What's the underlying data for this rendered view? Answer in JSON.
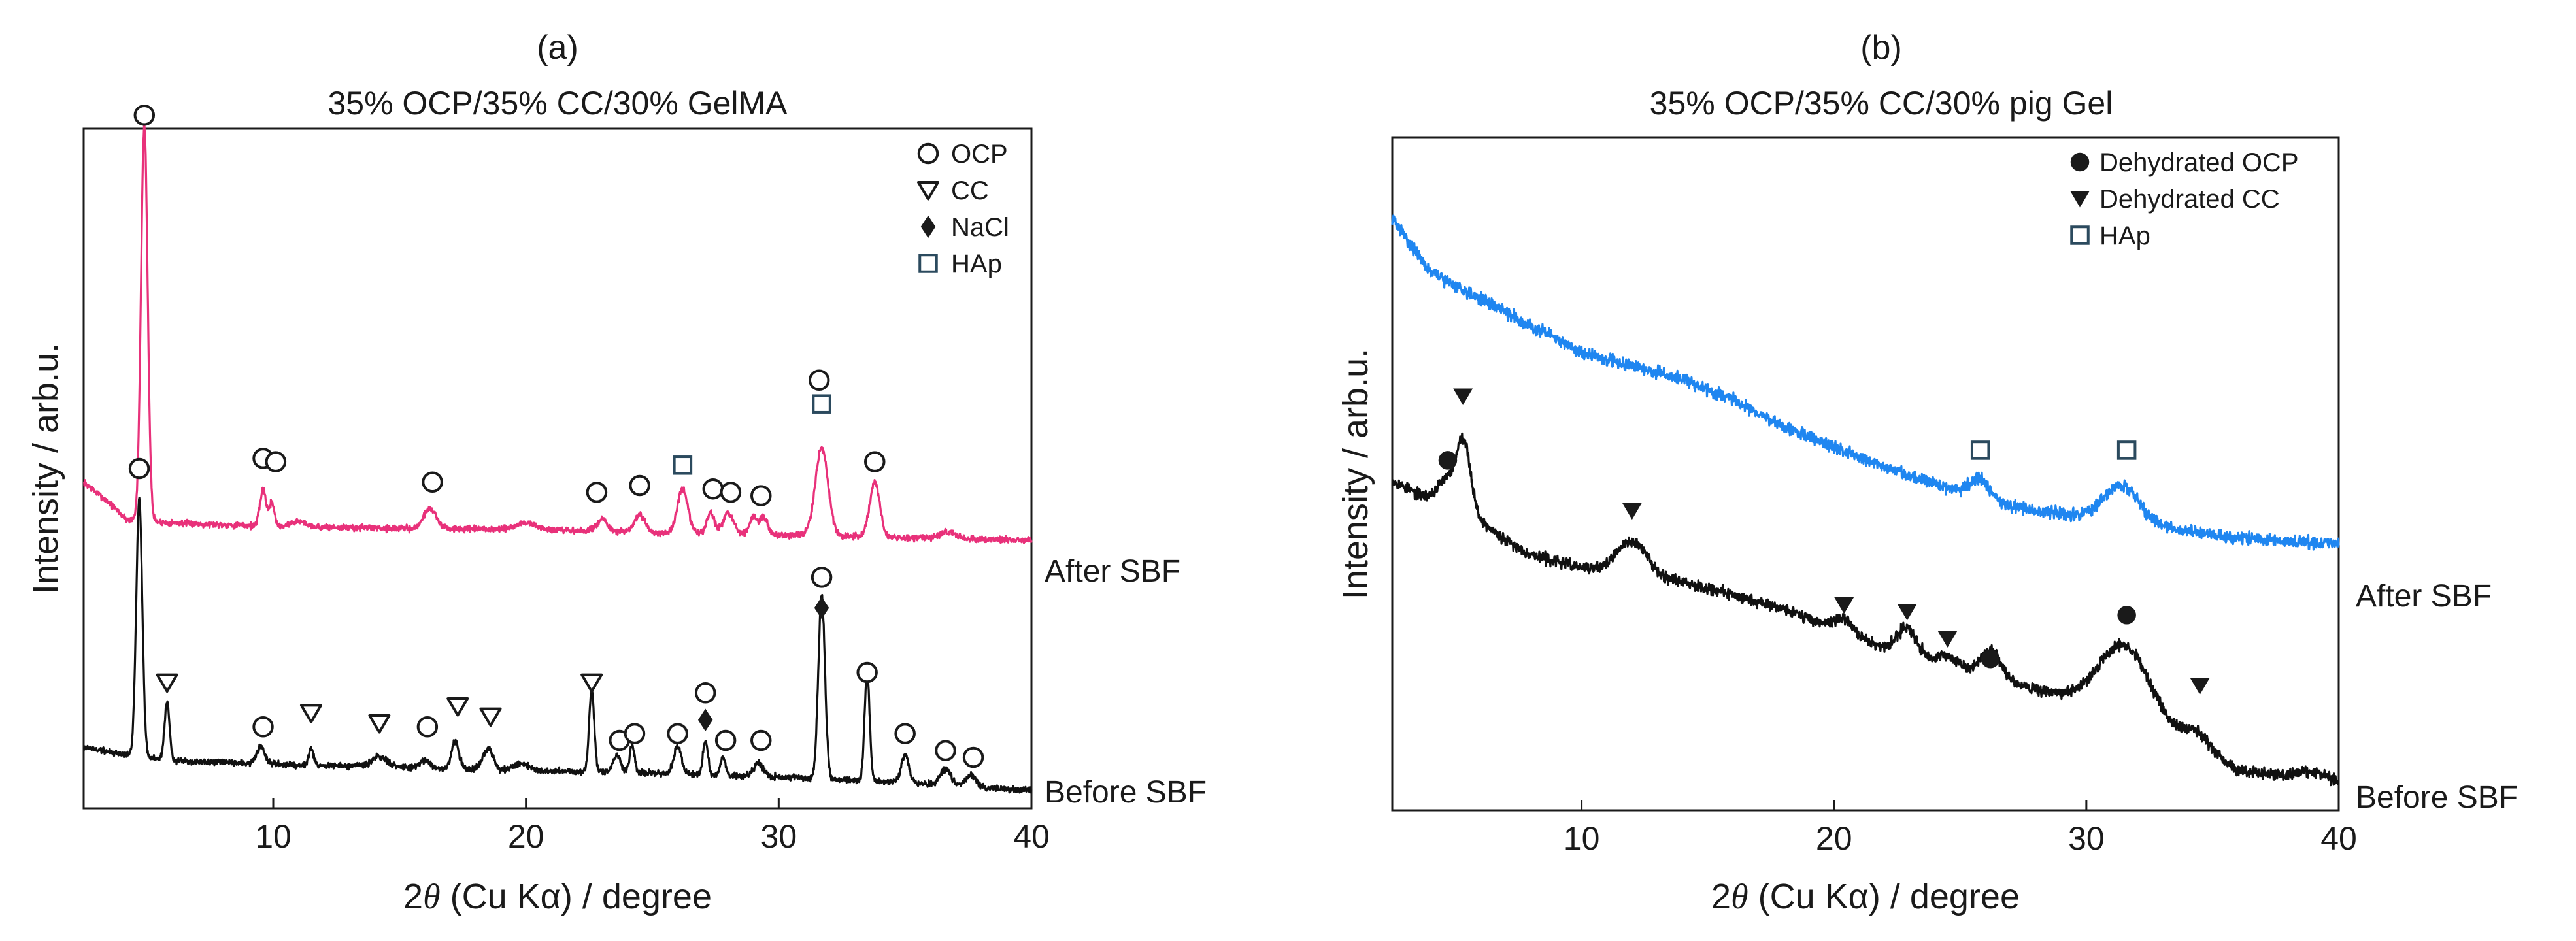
{
  "chart_data": [
    {
      "type": "line",
      "panel_label": "(a)",
      "title": "35% OCP/35% CC/30% GelMA",
      "xlabel_prefix": "2",
      "xlabel_theta": "θ",
      "xlabel_suffix": " (Cu Kα) / degree",
      "ylabel": "Intensity  / arb.u.",
      "xlim": [
        2.5,
        40
      ],
      "ylim": [
        0,
        100
      ],
      "x_ticks": [
        10,
        20,
        30,
        40
      ],
      "legend": {
        "placement": "top-right",
        "entries": [
          {
            "label": "OCP",
            "symbol": "circle-open"
          },
          {
            "label": "CC",
            "symbol": "triangle-down-open"
          },
          {
            "label": "NaCl",
            "symbol": "diamond-filled"
          },
          {
            "label": "HAp",
            "symbol": "square-open"
          }
        ]
      },
      "series": [
        {
          "name": "After SBF",
          "label": "After SBF",
          "color": "#e8317a",
          "baseline": [
            [
              2.5,
              48
            ],
            [
              3.5,
              45
            ],
            [
              4.2,
              42.5
            ],
            [
              6,
              42
            ],
            [
              10,
              41.5
            ],
            [
              15,
              41.2
            ],
            [
              20,
              41
            ],
            [
              25,
              40.6
            ],
            [
              30,
              40.3
            ],
            [
              35,
              39.8
            ],
            [
              40,
              39.5
            ]
          ],
          "peaks": [
            [
              4.9,
              58,
              0.13
            ],
            [
              9.6,
              5.5,
              0.12
            ],
            [
              9.95,
              3.5,
              0.1
            ],
            [
              11,
              0.8,
              0.3
            ],
            [
              16.2,
              3,
              0.25
            ],
            [
              20,
              1,
              0.4
            ],
            [
              23,
              1.8,
              0.2
            ],
            [
              24.5,
              2.5,
              0.2
            ],
            [
              26.2,
              6.5,
              0.2
            ],
            [
              27.3,
              3,
              0.15
            ],
            [
              28,
              3,
              0.2
            ],
            [
              29,
              2.5,
              0.15
            ],
            [
              29.4,
              2.5,
              0.15
            ],
            [
              31.7,
              13,
              0.25
            ],
            [
              33.8,
              8,
              0.2
            ],
            [
              36.7,
              1,
              0.3
            ]
          ],
          "noise": 0.45,
          "seed": 7,
          "markers": [
            {
              "symbol": "circle-open",
              "x": 4.9,
              "y": 102
            },
            {
              "symbol": "circle-open",
              "x": 9.6,
              "y": 51.5
            },
            {
              "symbol": "circle-open",
              "x": 10.1,
              "y": 51
            },
            {
              "symbol": "circle-open",
              "x": 16.3,
              "y": 48
            },
            {
              "symbol": "circle-open",
              "x": 22.8,
              "y": 46.5
            },
            {
              "symbol": "circle-open",
              "x": 24.5,
              "y": 47.5
            },
            {
              "symbol": "square-open",
              "x": 26.2,
              "y": 50.5
            },
            {
              "symbol": "circle-open",
              "x": 27.4,
              "y": 47
            },
            {
              "symbol": "circle-open",
              "x": 28.1,
              "y": 46.5
            },
            {
              "symbol": "circle-open",
              "x": 29.3,
              "y": 46
            },
            {
              "symbol": "circle-open",
              "x": 31.6,
              "y": 63
            },
            {
              "symbol": "square-open",
              "x": 31.7,
              "y": 59.5
            },
            {
              "symbol": "circle-open",
              "x": 33.8,
              "y": 51
            }
          ]
        },
        {
          "name": "Before SBF",
          "label": "Before SBF",
          "color": "#111111",
          "baseline": [
            [
              2.5,
              9
            ],
            [
              4,
              8
            ],
            [
              6,
              7
            ],
            [
              10,
              6.5
            ],
            [
              15,
              6
            ],
            [
              20,
              5.6
            ],
            [
              25,
              5.2
            ],
            [
              30,
              4.6
            ],
            [
              35,
              3.8
            ],
            [
              40,
              2.6
            ]
          ],
          "peaks": [
            [
              4.7,
              38,
              0.12
            ],
            [
              5.8,
              8.5,
              0.1
            ],
            [
              9.5,
              2.5,
              0.15
            ],
            [
              11.5,
              2.5,
              0.1
            ],
            [
              14.2,
              1.5,
              0.3
            ],
            [
              16,
              1.2,
              0.2
            ],
            [
              17.2,
              4,
              0.15
            ],
            [
              18.5,
              3,
              0.2
            ],
            [
              19.8,
              1,
              0.3
            ],
            [
              22.6,
              12,
              0.1
            ],
            [
              23.6,
              2.5,
              0.15
            ],
            [
              24.2,
              4,
              0.1
            ],
            [
              26,
              4,
              0.15
            ],
            [
              27.1,
              5,
              0.1
            ],
            [
              27.8,
              2.5,
              0.1
            ],
            [
              29.2,
              2,
              0.2
            ],
            [
              31.7,
              27,
              0.13
            ],
            [
              33.5,
              16,
              0.1
            ],
            [
              35,
              4,
              0.15
            ],
            [
              36.6,
              2.5,
              0.2
            ],
            [
              37.6,
              1.8,
              0.2
            ]
          ],
          "noise": 0.45,
          "seed": 19,
          "markers": [
            {
              "symbol": "circle-open",
              "x": 4.7,
              "y": 50
            },
            {
              "symbol": "triangle-down-open",
              "x": 5.8,
              "y": 18.5
            },
            {
              "symbol": "circle-open",
              "x": 9.6,
              "y": 12
            },
            {
              "symbol": "triangle-down-open",
              "x": 11.5,
              "y": 14
            },
            {
              "symbol": "triangle-down-open",
              "x": 14.2,
              "y": 12.5
            },
            {
              "symbol": "circle-open",
              "x": 16.1,
              "y": 12
            },
            {
              "symbol": "triangle-down-open",
              "x": 17.3,
              "y": 15
            },
            {
              "symbol": "triangle-down-open",
              "x": 18.6,
              "y": 13.5
            },
            {
              "symbol": "triangle-down-open",
              "x": 22.6,
              "y": 18.5
            },
            {
              "symbol": "circle-open",
              "x": 23.7,
              "y": 10
            },
            {
              "symbol": "circle-open",
              "x": 24.3,
              "y": 11
            },
            {
              "symbol": "circle-open",
              "x": 26.0,
              "y": 11
            },
            {
              "symbol": "circle-open",
              "x": 27.1,
              "y": 17
            },
            {
              "symbol": "diamond-filled",
              "x": 27.1,
              "y": 13
            },
            {
              "symbol": "circle-open",
              "x": 27.9,
              "y": 10
            },
            {
              "symbol": "circle-open",
              "x": 29.3,
              "y": 10
            },
            {
              "symbol": "circle-open",
              "x": 31.7,
              "y": 34
            },
            {
              "symbol": "diamond-filled",
              "x": 31.7,
              "y": 29.5
            },
            {
              "symbol": "circle-open",
              "x": 33.5,
              "y": 20
            },
            {
              "symbol": "circle-open",
              "x": 35.0,
              "y": 11
            },
            {
              "symbol": "circle-open",
              "x": 36.6,
              "y": 8.5
            },
            {
              "symbol": "circle-open",
              "x": 37.7,
              "y": 7.5
            }
          ]
        }
      ]
    },
    {
      "type": "line",
      "panel_label": "(b)",
      "title": "35% OCP/35% CC/30% pig Gel",
      "xlabel_prefix": "2",
      "xlabel_theta": "θ",
      "xlabel_suffix": " (Cu Kα) / degree",
      "ylabel": "Intensity  / arb.u.",
      "xlim": [
        2.5,
        40
      ],
      "ylim": [
        0,
        100
      ],
      "x_ticks": [
        10,
        20,
        30,
        40
      ],
      "legend": {
        "placement": "top-right",
        "entries": [
          {
            "label": "Dehydrated OCP",
            "symbol": "circle-filled"
          },
          {
            "label": "Dehydrated CC",
            "symbol": "triangle-down-filled"
          },
          {
            "label": "HAp",
            "symbol": "square-open"
          }
        ]
      },
      "series": [
        {
          "name": "After SBF",
          "label": "After SBF",
          "color": "#1f86f0",
          "baseline": [
            [
              2.5,
              88
            ],
            [
              4,
              80
            ],
            [
              6,
              76
            ],
            [
              8,
              72
            ],
            [
              10,
              68
            ],
            [
              12,
              66
            ],
            [
              14,
              64
            ],
            [
              16,
              61
            ],
            [
              18,
              57
            ],
            [
              20,
              54
            ],
            [
              22,
              51
            ],
            [
              24,
              48.5
            ],
            [
              26,
              46
            ],
            [
              28,
              44.5
            ],
            [
              30,
              43.5
            ],
            [
              32,
              42.5
            ],
            [
              34,
              41.5
            ],
            [
              36,
              40.5
            ],
            [
              38,
              40
            ],
            [
              40,
              39.5
            ]
          ],
          "peaks": [
            [
              25.8,
              3,
              0.4
            ],
            [
              31.4,
              5.5,
              0.7
            ]
          ],
          "noise": 0.9,
          "seed": 31,
          "markers": [
            {
              "symbol": "square-open",
              "x": 25.8,
              "y": 53.5
            },
            {
              "symbol": "square-open",
              "x": 31.6,
              "y": 53.5
            }
          ]
        },
        {
          "name": "Before SBF",
          "label": "Before SBF",
          "color": "#111111",
          "baseline": [
            [
              2.5,
              49
            ],
            [
              3.5,
              47
            ],
            [
              4.5,
              46
            ],
            [
              5.5,
              45
            ],
            [
              6,
              43
            ],
            [
              7,
              40
            ],
            [
              8,
              38
            ],
            [
              10,
              36
            ],
            [
              12,
              35
            ],
            [
              14,
              34
            ],
            [
              16,
              32
            ],
            [
              18,
              30
            ],
            [
              20,
              27
            ],
            [
              22,
              24
            ],
            [
              24,
              22
            ],
            [
              26,
              20
            ],
            [
              28,
              18
            ],
            [
              30,
              16
            ],
            [
              32,
              14
            ],
            [
              34,
              10
            ],
            [
              36,
              6
            ],
            [
              38,
              5
            ],
            [
              40,
              4
            ]
          ],
          "peaks": [
            [
              4.6,
              3,
              0.3
            ],
            [
              5.3,
              10,
              0.28
            ],
            [
              12,
              5,
              0.6
            ],
            [
              20.4,
              2,
              0.4
            ],
            [
              22.9,
              4,
              0.4
            ],
            [
              24.5,
              1.5,
              0.4
            ],
            [
              26.2,
              4,
              0.4
            ],
            [
              31.5,
              10,
              1.0
            ],
            [
              34.4,
              2.5,
              0.5
            ],
            [
              39,
              1.2,
              0.6
            ]
          ],
          "noise": 0.8,
          "seed": 53,
          "markers": [
            {
              "symbol": "circle-filled",
              "x": 4.7,
              "y": 52
            },
            {
              "symbol": "triangle-down-filled",
              "x": 5.3,
              "y": 61.5
            },
            {
              "symbol": "triangle-down-filled",
              "x": 12.0,
              "y": 44.5
            },
            {
              "symbol": "triangle-down-filled",
              "x": 20.4,
              "y": 30.5
            },
            {
              "symbol": "triangle-down-filled",
              "x": 22.9,
              "y": 29.5
            },
            {
              "symbol": "triangle-down-filled",
              "x": 24.5,
              "y": 25.5
            },
            {
              "symbol": "circle-filled",
              "x": 26.2,
              "y": 22.5
            },
            {
              "symbol": "circle-filled",
              "x": 31.6,
              "y": 29
            },
            {
              "symbol": "triangle-down-filled",
              "x": 34.5,
              "y": 18.5
            }
          ]
        }
      ]
    }
  ]
}
